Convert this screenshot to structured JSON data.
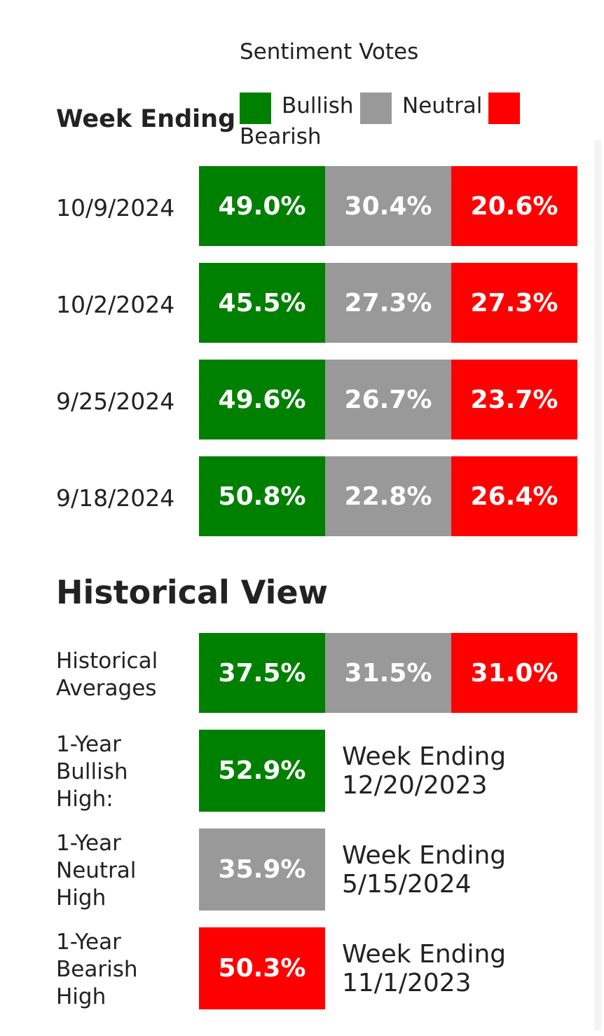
{
  "header": {
    "sentiment_title": "Sentiment Votes",
    "week_ending_label": "Week Ending",
    "legend": [
      {
        "label": "Bullish",
        "color": "#008000"
      },
      {
        "label": "Neutral",
        "color": "#999999"
      },
      {
        "label": "Bearish",
        "color": "#ff0000"
      }
    ]
  },
  "weeks": [
    {
      "date": "10/9/2024",
      "bullish": "49.0%",
      "neutral": "30.4%",
      "bearish": "20.6%"
    },
    {
      "date": "10/2/2024",
      "bullish": "45.5%",
      "neutral": "27.3%",
      "bearish": "27.3%"
    },
    {
      "date": "9/25/2024",
      "bullish": "49.6%",
      "neutral": "26.7%",
      "bearish": "23.7%"
    },
    {
      "date": "9/18/2024",
      "bullish": "50.8%",
      "neutral": "22.8%",
      "bearish": "26.4%"
    }
  ],
  "historical": {
    "title": "Historical View",
    "averages": {
      "label_line1": "Historical",
      "label_line2": "Averages",
      "bullish": "37.5%",
      "neutral": "31.5%",
      "bearish": "31.0%"
    },
    "highs": [
      {
        "label_lines": [
          "1-Year",
          "Bullish",
          "High:"
        ],
        "value": "52.9%",
        "note_line1": "Week Ending",
        "note_line2": "12/20/2023",
        "type": "bullish"
      },
      {
        "label_lines": [
          "1-Year",
          "Neutral",
          "High"
        ],
        "value": "35.9%",
        "note_line1": "Week Ending",
        "note_line2": "5/15/2024",
        "type": "neutral"
      },
      {
        "label_lines": [
          "1-Year",
          "Bearish",
          "High"
        ],
        "value": "50.3%",
        "note_line1": "Week Ending",
        "note_line2": "11/1/2023",
        "type": "bearish"
      }
    ]
  }
}
